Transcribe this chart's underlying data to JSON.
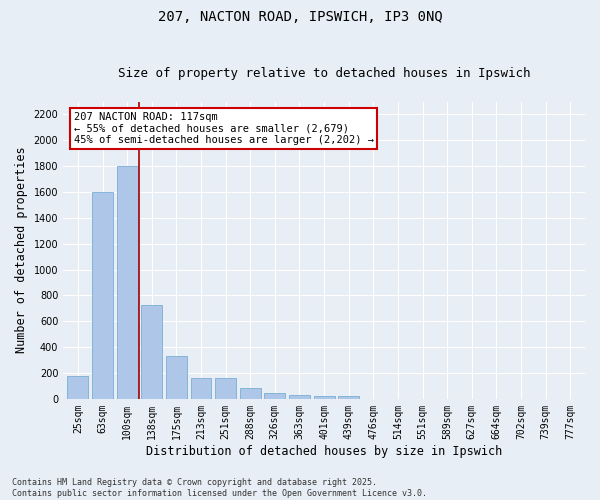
{
  "title1": "207, NACTON ROAD, IPSWICH, IP3 0NQ",
  "title2": "Size of property relative to detached houses in Ipswich",
  "xlabel": "Distribution of detached houses by size in Ipswich",
  "ylabel": "Number of detached properties",
  "categories": [
    "25sqm",
    "63sqm",
    "100sqm",
    "138sqm",
    "175sqm",
    "213sqm",
    "251sqm",
    "288sqm",
    "326sqm",
    "363sqm",
    "401sqm",
    "439sqm",
    "476sqm",
    "514sqm",
    "551sqm",
    "589sqm",
    "627sqm",
    "664sqm",
    "702sqm",
    "739sqm",
    "777sqm"
  ],
  "values": [
    175,
    1600,
    1800,
    725,
    330,
    160,
    160,
    80,
    45,
    30,
    20,
    20,
    0,
    0,
    0,
    0,
    0,
    0,
    0,
    0,
    0
  ],
  "bar_color": "#aec6e8",
  "bar_edgecolor": "#7aafd4",
  "vline_x": 2.5,
  "vline_color": "#aa0000",
  "annotation_text": "207 NACTON ROAD: 117sqm\n← 55% of detached houses are smaller (2,679)\n45% of semi-detached houses are larger (2,202) →",
  "annotation_box_color": "#ffffff",
  "annotation_box_edgecolor": "#cc0000",
  "ylim": [
    0,
    2300
  ],
  "yticks": [
    0,
    200,
    400,
    600,
    800,
    1000,
    1200,
    1400,
    1600,
    1800,
    2000,
    2200
  ],
  "background_color": "#e8eef5",
  "footer": "Contains HM Land Registry data © Crown copyright and database right 2025.\nContains public sector information licensed under the Open Government Licence v3.0.",
  "title_fontsize": 10,
  "subtitle_fontsize": 9,
  "tick_fontsize": 7,
  "label_fontsize": 8.5,
  "footer_fontsize": 6,
  "annot_fontsize": 7.5
}
